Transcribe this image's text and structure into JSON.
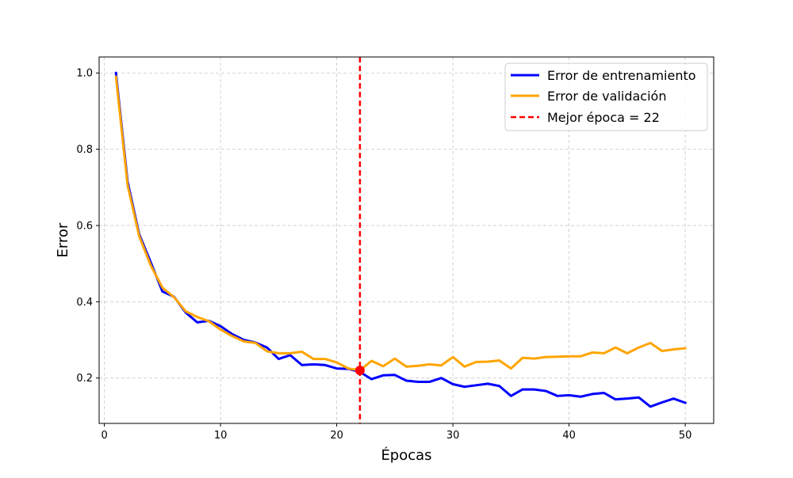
{
  "chart_data": {
    "type": "line",
    "xlabel": "Épocas",
    "ylabel": "Error",
    "xlim": [
      -0.45,
      52.45
    ],
    "ylim": [
      0.081,
      1.042
    ],
    "xticks": [
      0,
      10,
      20,
      30,
      40,
      50
    ],
    "xtick_labels": [
      "0",
      "10",
      "20",
      "30",
      "40",
      "50"
    ],
    "yticks": [
      0.2,
      0.4,
      0.6,
      0.8,
      1.0
    ],
    "ytick_labels": [
      "0.2",
      "0.4",
      "0.6",
      "0.8",
      "1.0"
    ],
    "grid": true,
    "legend_position": "upper right",
    "x": [
      1,
      2,
      3,
      4,
      5,
      6,
      7,
      8,
      9,
      10,
      11,
      12,
      13,
      14,
      15,
      16,
      17,
      18,
      19,
      20,
      21,
      22,
      23,
      24,
      25,
      26,
      27,
      28,
      29,
      30,
      31,
      32,
      33,
      34,
      35,
      36,
      37,
      38,
      39,
      40,
      41,
      42,
      43,
      44,
      45,
      46,
      47,
      48,
      49,
      50
    ],
    "series": [
      {
        "name": "Error de entrenamiento",
        "color": "#0000ff",
        "values": [
          1.0,
          0.715,
          0.577,
          0.503,
          0.427,
          0.413,
          0.372,
          0.346,
          0.35,
          0.336,
          0.315,
          0.3,
          0.293,
          0.28,
          0.25,
          0.26,
          0.234,
          0.236,
          0.234,
          0.225,
          0.224,
          0.216,
          0.197,
          0.207,
          0.208,
          0.193,
          0.19,
          0.19,
          0.2,
          0.184,
          0.177,
          0.181,
          0.185,
          0.179,
          0.153,
          0.17,
          0.17,
          0.166,
          0.153,
          0.155,
          0.151,
          0.158,
          0.161,
          0.144,
          0.146,
          0.149,
          0.125,
          0.136,
          0.146,
          0.135
        ]
      },
      {
        "name": "Error de validación",
        "color": "#ffa500",
        "values": [
          0.99,
          0.706,
          0.572,
          0.495,
          0.437,
          0.412,
          0.375,
          0.36,
          0.349,
          0.327,
          0.31,
          0.296,
          0.292,
          0.27,
          0.265,
          0.265,
          0.269,
          0.25,
          0.25,
          0.241,
          0.225,
          0.22,
          0.245,
          0.231,
          0.251,
          0.23,
          0.232,
          0.236,
          0.233,
          0.255,
          0.23,
          0.242,
          0.243,
          0.246,
          0.225,
          0.253,
          0.251,
          0.255,
          0.256,
          0.257,
          0.257,
          0.267,
          0.265,
          0.28,
          0.265,
          0.28,
          0.292,
          0.271,
          0.275,
          0.278
        ]
      }
    ],
    "vline": {
      "x": 22,
      "label": "Mejor época = 22",
      "color": "#ff0000"
    },
    "marker": {
      "x": 22,
      "y": 0.22,
      "color": "#ff0000"
    }
  }
}
